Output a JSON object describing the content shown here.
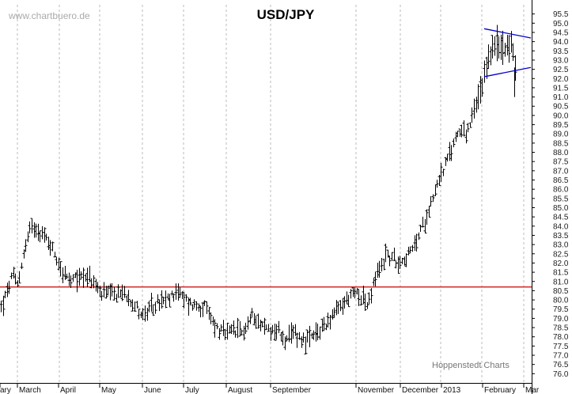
{
  "chart_data": {
    "type": "ohlc",
    "title": "USD/JPY",
    "watermark": "www.chartbuero.de",
    "credit": "Hoppenstedt Charts",
    "ylim": [
      75.5,
      96.0
    ],
    "y_ticks": [
      "76.0",
      "76.5",
      "77.0",
      "77.5",
      "78.0",
      "78.5",
      "79.0",
      "79.5",
      "80.0",
      "80.5",
      "81.0",
      "81.5",
      "82.0",
      "82.5",
      "83.0",
      "83.5",
      "84.0",
      "84.5",
      "85.0",
      "85.5",
      "86.0",
      "86.5",
      "87.0",
      "87.5",
      "88.0",
      "88.5",
      "89.0",
      "89.5",
      "90.0",
      "90.5",
      "91.0",
      "91.5",
      "92.0",
      "92.5",
      "93.0",
      "93.5",
      "94.0",
      "94.5",
      "95.0",
      "95.5"
    ],
    "x_labels": [
      "ary",
      "March",
      "April",
      "May",
      "June",
      "July",
      "August",
      "September",
      "November",
      "December",
      "2013",
      "February",
      "Mar"
    ],
    "grid": "vertical dashed at month boundaries",
    "colors": {
      "bars": "#000000",
      "support_line": "#cc0000",
      "pattern": "#0000cc",
      "grid": "#bbbbbb"
    },
    "support_line": {
      "value": 80.7,
      "label": ""
    },
    "pattern_lines": [
      {
        "name": "",
        "start": [
          2012.1,
          94.7
        ],
        "end": [
          2012.17,
          94.2
        ]
      },
      {
        "name": "",
        "start": [
          2012.1,
          92.1
        ],
        "end": [
          2012.17,
          92.6
        ]
      }
    ],
    "anchors": [
      [
        0,
        79.5
      ],
      [
        8,
        80.3
      ],
      [
        15,
        81.3
      ],
      [
        22,
        80.8
      ],
      [
        30,
        82.6
      ],
      [
        38,
        83.9
      ],
      [
        45,
        84.0
      ],
      [
        52,
        83.6
      ],
      [
        62,
        83.1
      ],
      [
        70,
        82.4
      ],
      [
        78,
        81.6
      ],
      [
        88,
        80.9
      ],
      [
        98,
        81.2
      ],
      [
        108,
        81.4
      ],
      [
        118,
        80.9
      ],
      [
        126,
        80.4
      ],
      [
        135,
        80.3
      ],
      [
        145,
        80.2
      ],
      [
        153,
        80.4
      ],
      [
        163,
        80.2
      ],
      [
        172,
        79.6
      ],
      [
        182,
        79.1
      ],
      [
        190,
        79.5
      ],
      [
        198,
        79.8
      ],
      [
        208,
        79.9
      ],
      [
        216,
        80.1
      ],
      [
        222,
        80.6
      ],
      [
        230,
        80.1
      ],
      [
        240,
        79.8
      ],
      [
        248,
        79.7
      ],
      [
        258,
        79.6
      ],
      [
        266,
        79.0
      ],
      [
        275,
        78.4
      ],
      [
        285,
        78.1
      ],
      [
        295,
        78.3
      ],
      [
        305,
        78.2
      ],
      [
        313,
        78.7
      ],
      [
        320,
        79.3
      ],
      [
        330,
        78.6
      ],
      [
        342,
        78.4
      ],
      [
        352,
        78.3
      ],
      [
        362,
        77.7
      ],
      [
        372,
        78.3
      ],
      [
        380,
        77.9
      ],
      [
        390,
        77.8
      ],
      [
        400,
        78.1
      ],
      [
        410,
        78.7
      ],
      [
        420,
        79.1
      ],
      [
        430,
        79.6
      ],
      [
        440,
        80.1
      ],
      [
        450,
        80.4
      ],
      [
        458,
        80.2
      ],
      [
        465,
        79.6
      ],
      [
        472,
        80.9
      ],
      [
        480,
        81.7
      ],
      [
        488,
        82.5
      ],
      [
        496,
        82.2
      ],
      [
        504,
        82.1
      ],
      [
        512,
        82.3
      ],
      [
        520,
        82.6
      ],
      [
        528,
        83.4
      ],
      [
        536,
        84.2
      ],
      [
        544,
        85.3
      ],
      [
        552,
        86.3
      ],
      [
        560,
        87.1
      ],
      [
        568,
        87.8
      ],
      [
        576,
        88.9
      ],
      [
        584,
        89.4
      ],
      [
        590,
        88.9
      ],
      [
        596,
        89.8
      ],
      [
        604,
        90.9
      ],
      [
        610,
        91.4
      ],
      [
        616,
        93.1
      ],
      [
        624,
        93.8
      ],
      [
        632,
        93.6
      ],
      [
        640,
        93.9
      ],
      [
        647,
        93.6
      ],
      [
        652,
        92.6
      ]
    ],
    "spikes": [
      [
        650,
        91.0
      ]
    ]
  }
}
